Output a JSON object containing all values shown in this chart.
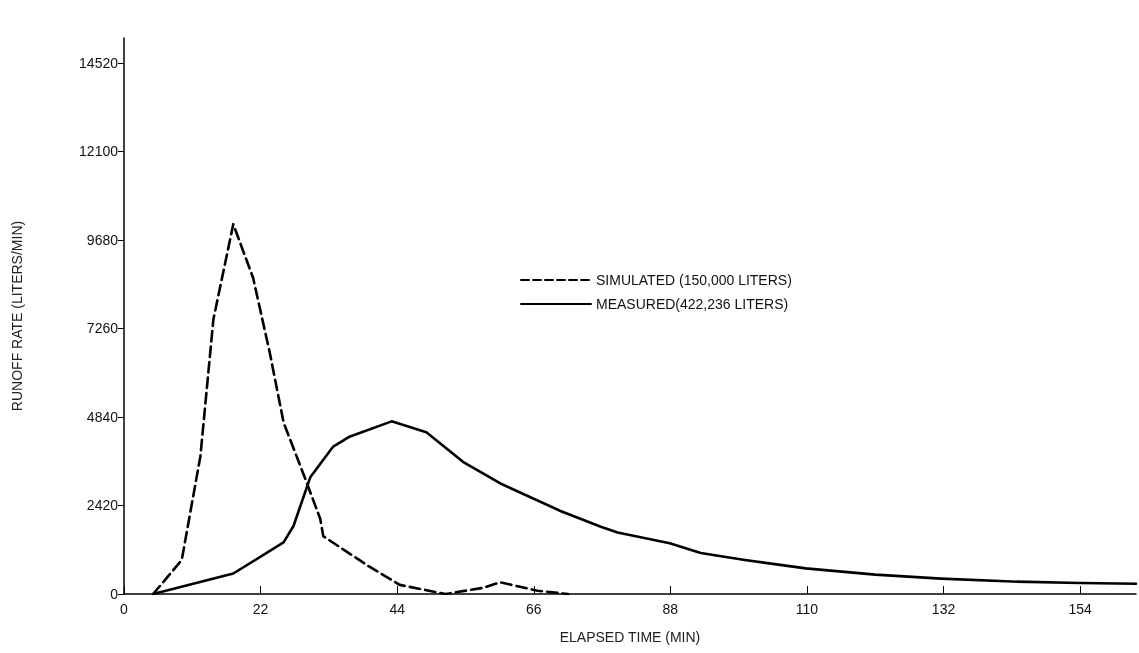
{
  "chart_data": {
    "type": "line",
    "xlabel": "ELAPSED TIME (MIN)",
    "ylabel": "RUNOFF RATE (LITERS/MIN)",
    "xlim": [
      0,
      163
    ],
    "xticks": [
      0,
      22,
      44,
      66,
      88,
      110,
      132,
      154
    ],
    "ylim": [
      0,
      15200
    ],
    "yticks": [
      0,
      2420,
      4840,
      7260,
      9680,
      12100,
      14520
    ],
    "grid": false,
    "legend": "right",
    "marker": "none",
    "series": [
      {
        "name": "SIMULATED (150,000 LITERS)",
        "color": "#000000",
        "line_style": "dashed",
        "x": [
          4.7,
          9.3,
          12.3,
          14.4,
          17.6,
          20.8,
          23.5,
          25.7,
          28.9,
          31.6,
          32.1,
          39.4,
          44.4,
          51.8,
          57.9,
          60.6,
          66.6,
          71.5
        ],
        "values": [
          0,
          930,
          3760,
          7510,
          10110,
          8640,
          6580,
          4690,
          3280,
          2060,
          1580,
          760,
          250,
          0,
          170,
          320,
          90,
          0
        ]
      },
      {
        "name": "MEASURED(422,236 LITERS)",
        "color": "#000000",
        "line_style": "solid",
        "x": [
          4.7,
          17.6,
          25.7,
          27.3,
          30,
          33.7,
          36.2,
          43.1,
          48.7,
          54.8,
          60.9,
          70.3,
          76.8,
          79.5,
          87.9,
          92.9,
          100,
          109.8,
          121,
          131.6,
          143,
          154,
          163
        ],
        "values": [
          0,
          560,
          1410,
          1860,
          3190,
          4030,
          4290,
          4720,
          4420,
          3590,
          3000,
          2270,
          1840,
          1680,
          1390,
          1120,
          930,
          700,
          530,
          420,
          340,
          300,
          280
        ]
      }
    ]
  }
}
